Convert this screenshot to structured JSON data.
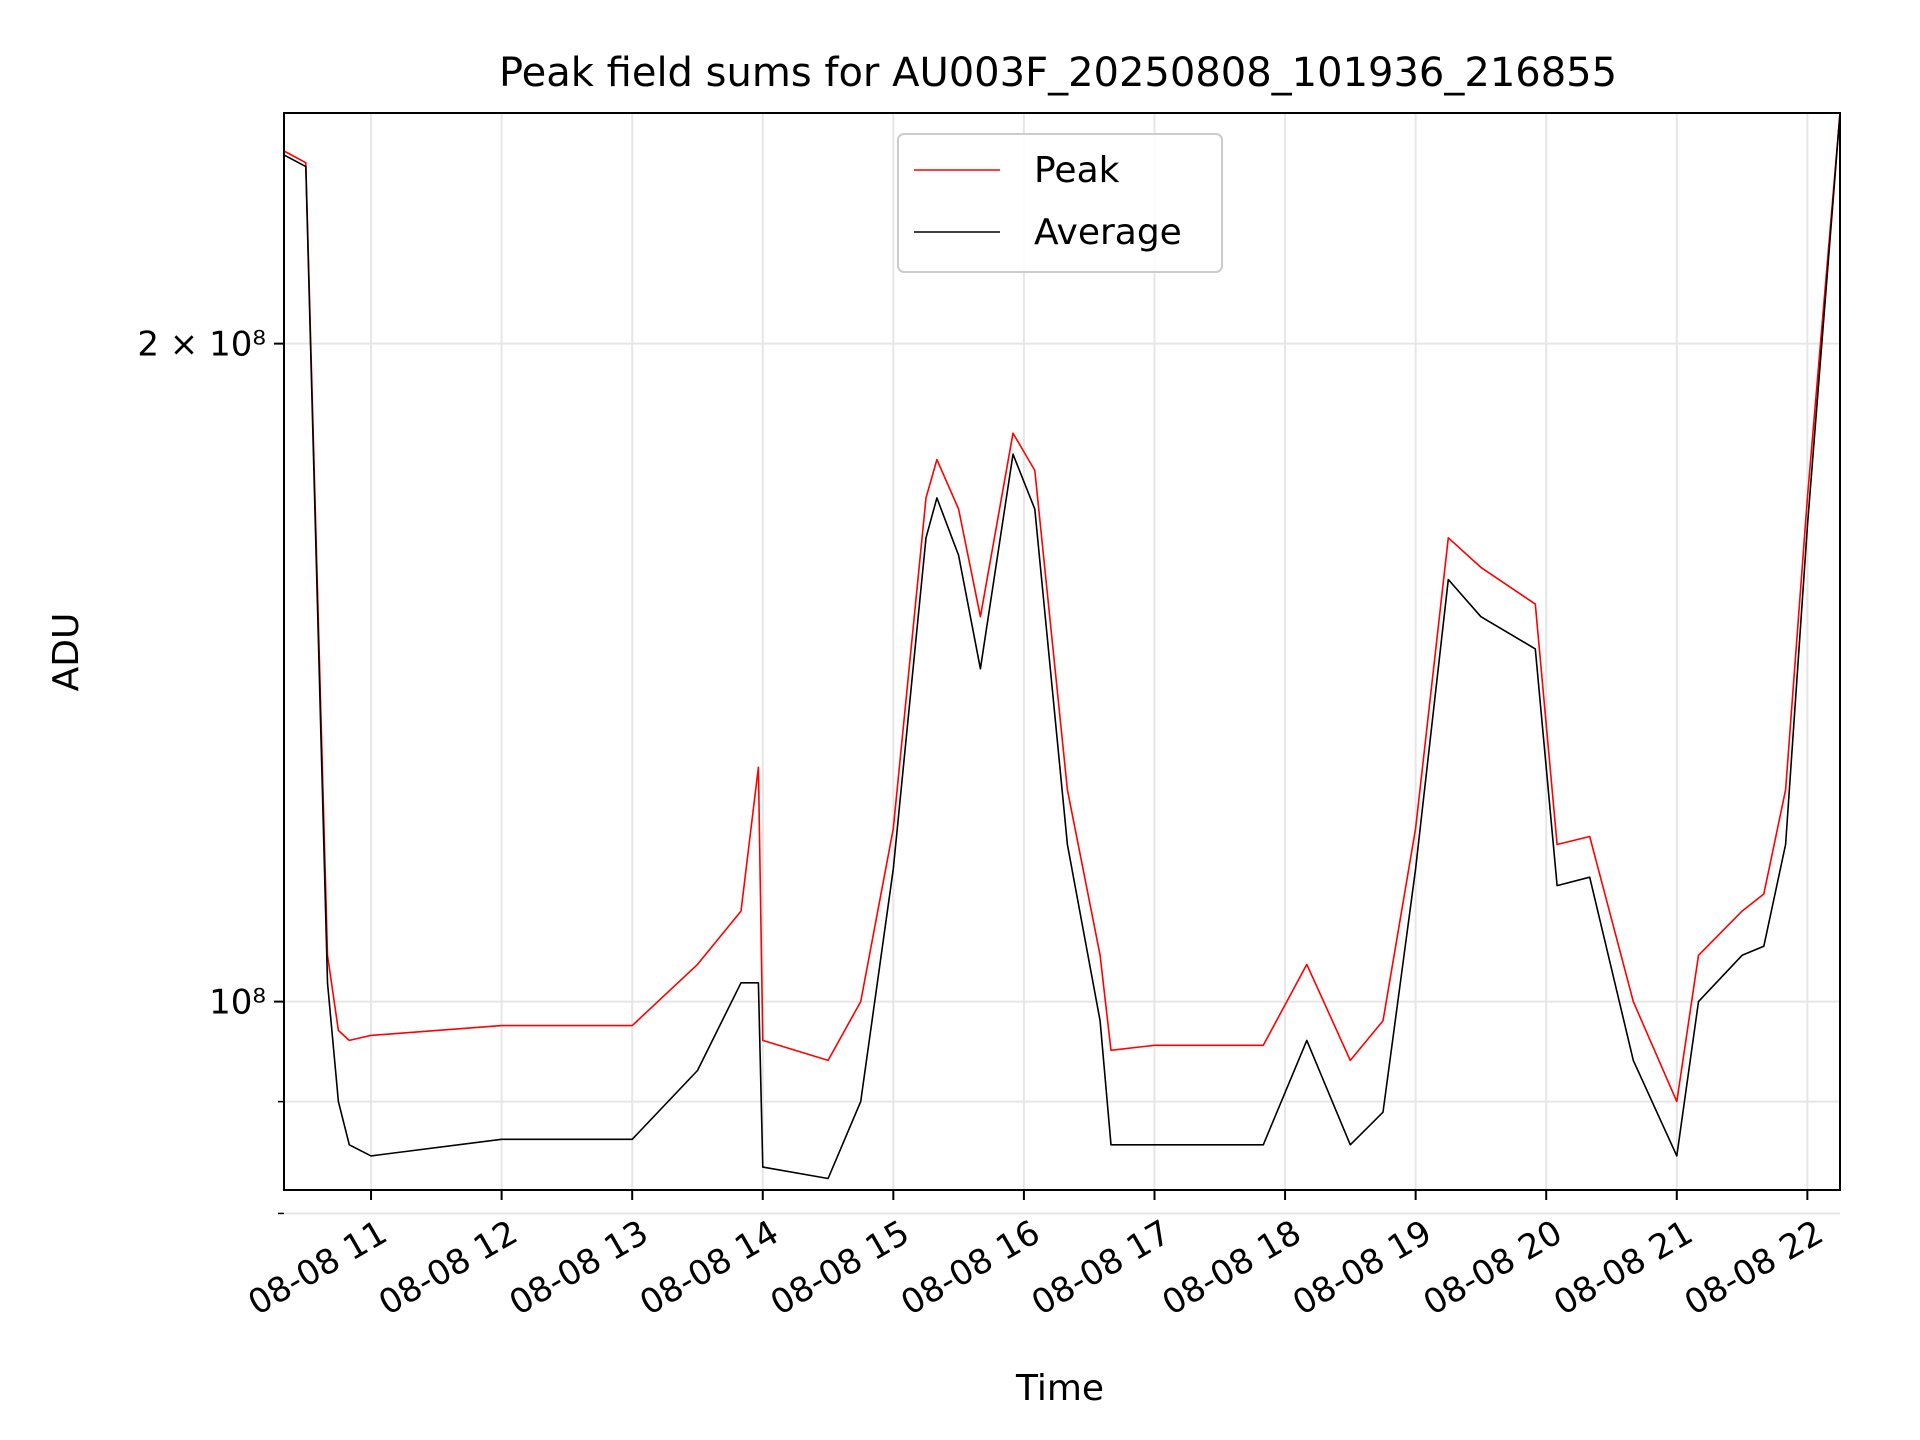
{
  "chart_data": {
    "type": "line",
    "title": "Peak field sums for AU003F_20250808_101936_216855",
    "xlabel": "Time",
    "ylabel": "ADU",
    "y_scale": "log",
    "ylim": [
      82000000,
      255000000
    ],
    "xlim": [
      "2025-08-08 10:20",
      "2025-08-08 22:15"
    ],
    "grid": true,
    "legend_position": "upper center",
    "x_tick_labels": [
      "08-08 11",
      "08-08 12",
      "08-08 13",
      "08-08 14",
      "08-08 15",
      "08-08 16",
      "08-08 17",
      "08-08 18",
      "08-08 19",
      "08-08 20",
      "08-08 21",
      "08-08 22"
    ],
    "x_tick_times": [
      "2025-08-08 11:00",
      "2025-08-08 12:00",
      "2025-08-08 13:00",
      "2025-08-08 14:00",
      "2025-08-08 15:00",
      "2025-08-08 16:00",
      "2025-08-08 17:00",
      "2025-08-08 18:00",
      "2025-08-08 19:00",
      "2025-08-08 20:00",
      "2025-08-08 21:00",
      "2025-08-08 22:00"
    ],
    "y_ticks": [
      {
        "value": 200000000,
        "label": "2 × 10⁸"
      },
      {
        "value": 100000000,
        "label": "10⁸"
      }
    ],
    "y_minor_ticks": [
      90000000,
      80000000
    ],
    "series": [
      {
        "name": "Peak",
        "color": "#ff0000",
        "x": [
          "2025-08-08 10:20",
          "2025-08-08 10:30",
          "2025-08-08 10:40",
          "2025-08-08 10:45",
          "2025-08-08 10:50",
          "2025-08-08 11:00",
          "2025-08-08 12:00",
          "2025-08-08 13:00",
          "2025-08-08 13:30",
          "2025-08-08 13:50",
          "2025-08-08 13:58",
          "2025-08-08 14:00",
          "2025-08-08 14:30",
          "2025-08-08 14:45",
          "2025-08-08 15:00",
          "2025-08-08 15:15",
          "2025-08-08 15:20",
          "2025-08-08 15:30",
          "2025-08-08 15:40",
          "2025-08-08 15:55",
          "2025-08-08 16:05",
          "2025-08-08 16:20",
          "2025-08-08 16:35",
          "2025-08-08 16:40",
          "2025-08-08 17:00",
          "2025-08-08 17:50",
          "2025-08-08 18:10",
          "2025-08-08 18:30",
          "2025-08-08 18:45",
          "2025-08-08 19:00",
          "2025-08-08 19:15",
          "2025-08-08 19:30",
          "2025-08-08 19:55",
          "2025-08-08 20:05",
          "2025-08-08 20:20",
          "2025-08-08 20:40",
          "2025-08-08 21:00",
          "2025-08-08 21:10",
          "2025-08-08 21:30",
          "2025-08-08 21:40",
          "2025-08-08 21:50",
          "2025-08-08 22:00",
          "2025-08-08 22:15"
        ],
        "values": [
          245000000,
          242000000,
          105000000,
          97000000,
          96000000,
          96500000,
          97500000,
          97500000,
          104000000,
          110000000,
          128000000,
          96000000,
          94000000,
          100000000,
          120000000,
          170000000,
          177000000,
          168000000,
          150000000,
          182000000,
          175000000,
          125000000,
          105000000,
          95000000,
          95500000,
          95500000,
          104000000,
          94000000,
          98000000,
          120000000,
          163000000,
          158000000,
          152000000,
          118000000,
          119000000,
          100000000,
          90000000,
          105000000,
          110000000,
          112000000,
          125000000,
          170000000,
          255000000
        ]
      },
      {
        "name": "Average",
        "color": "#000000",
        "x": [
          "2025-08-08 10:20",
          "2025-08-08 10:30",
          "2025-08-08 10:40",
          "2025-08-08 10:45",
          "2025-08-08 10:50",
          "2025-08-08 11:00",
          "2025-08-08 12:00",
          "2025-08-08 13:00",
          "2025-08-08 13:30",
          "2025-08-08 13:50",
          "2025-08-08 13:58",
          "2025-08-08 14:00",
          "2025-08-08 14:30",
          "2025-08-08 14:45",
          "2025-08-08 15:00",
          "2025-08-08 15:15",
          "2025-08-08 15:20",
          "2025-08-08 15:30",
          "2025-08-08 15:40",
          "2025-08-08 15:55",
          "2025-08-08 16:05",
          "2025-08-08 16:20",
          "2025-08-08 16:35",
          "2025-08-08 16:40",
          "2025-08-08 17:00",
          "2025-08-08 17:50",
          "2025-08-08 18:10",
          "2025-08-08 18:30",
          "2025-08-08 18:45",
          "2025-08-08 19:00",
          "2025-08-08 19:15",
          "2025-08-08 19:30",
          "2025-08-08 19:55",
          "2025-08-08 20:05",
          "2025-08-08 20:20",
          "2025-08-08 20:40",
          "2025-08-08 21:00",
          "2025-08-08 21:10",
          "2025-08-08 21:30",
          "2025-08-08 21:40",
          "2025-08-08 21:50",
          "2025-08-08 22:00",
          "2025-08-08 22:15"
        ],
        "values": [
          244000000,
          241000000,
          102000000,
          90000000,
          86000000,
          85000000,
          86500000,
          86500000,
          93000000,
          102000000,
          102000000,
          84000000,
          83000000,
          90000000,
          115000000,
          163000000,
          170000000,
          160000000,
          142000000,
          178000000,
          168000000,
          118000000,
          98000000,
          86000000,
          86000000,
          86000000,
          96000000,
          86000000,
          89000000,
          115000000,
          156000000,
          150000000,
          145000000,
          113000000,
          114000000,
          94000000,
          85000000,
          100000000,
          105000000,
          106000000,
          118000000,
          165000000,
          255000000
        ]
      }
    ]
  }
}
